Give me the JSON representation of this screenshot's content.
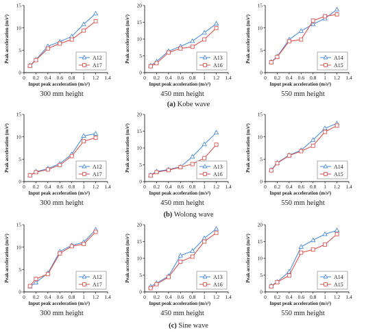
{
  "colors": {
    "blue": "#4F8ED9",
    "red": "#D9534F"
  },
  "groups": [
    {
      "caption_tag": "(a)",
      "caption_text": "Kobe wave"
    },
    {
      "caption_tag": "(b)",
      "caption_text": "Wolong wave"
    },
    {
      "caption_tag": "(c)",
      "caption_text": "Sine wave"
    }
  ],
  "chart_data": [
    {
      "type": "line",
      "group": 0,
      "height_label": "300 mm height",
      "xlabel": "Input peak acceleration  (m/s²)",
      "ylabel": "Peak acceleration  (m/s²)",
      "xlim": [
        0,
        1.4
      ],
      "ylim": [
        0,
        15
      ],
      "xticks": [
        "0",
        "0.2",
        "0.4",
        "0.6",
        "0.8",
        "1",
        "1.2",
        "1.4"
      ],
      "yticks": [
        "0",
        "5",
        "10",
        "15"
      ],
      "legend_position": "bottom-right",
      "x": [
        0.1,
        0.2,
        0.4,
        0.6,
        0.8,
        1.0,
        1.2
      ],
      "series": [
        {
          "name": "A12",
          "marker": "triangle",
          "color": "#4F8ED9",
          "values": [
            1.6,
            2.9,
            5.9,
            6.9,
            8.1,
            10.8,
            13.2
          ]
        },
        {
          "name": "A17",
          "marker": "square",
          "color": "#D9534F",
          "values": [
            1.5,
            2.8,
            5.4,
            6.5,
            7.4,
            9.4,
            11.5
          ]
        }
      ]
    },
    {
      "type": "line",
      "group": 0,
      "height_label": "450 mm height",
      "xlabel": "Input peak acceleration  (m/s²)",
      "ylabel": "Peak acceleration  (m/s²)",
      "xlim": [
        0,
        1.4
      ],
      "ylim": [
        0,
        20
      ],
      "xticks": [
        "0",
        "0.2",
        "0.4",
        "0.6",
        "0.8",
        "1",
        "1.2",
        "1.4"
      ],
      "yticks": [
        "0",
        "5",
        "10",
        "15",
        "20"
      ],
      "legend_position": "bottom-right",
      "x": [
        0.1,
        0.2,
        0.4,
        0.6,
        0.8,
        1.0,
        1.2
      ],
      "series": [
        {
          "name": "A13",
          "marker": "triangle",
          "color": "#4F8ED9",
          "values": [
            2.1,
            3.3,
            6.4,
            7.8,
            9.4,
            11.9,
            14.6
          ]
        },
        {
          "name": "A16",
          "marker": "square",
          "color": "#D9534F",
          "values": [
            1.9,
            2.8,
            6.0,
            7.2,
            7.7,
            9.9,
            13.3
          ]
        }
      ]
    },
    {
      "type": "line",
      "group": 0,
      "height_label": "550 mm height",
      "xlabel": "Input peak acceleration  (m/s²)",
      "ylabel": "Peak acceleration  (m/s²)",
      "xlim": [
        0,
        1.4
      ],
      "ylim": [
        0,
        15
      ],
      "xticks": [
        "0",
        "0.2",
        "0.4",
        "0.6",
        "0.8",
        "1",
        "1.2",
        "1.4"
      ],
      "yticks": [
        "0",
        "5",
        "10",
        "15"
      ],
      "legend_position": "bottom-right",
      "x": [
        0.1,
        0.2,
        0.4,
        0.6,
        0.8,
        1.0,
        1.2
      ],
      "series": [
        {
          "name": "A14",
          "marker": "triangle",
          "color": "#4F8ED9",
          "values": [
            2.4,
            3.6,
            7.4,
            9.3,
            10.8,
            12.1,
            14.1
          ]
        },
        {
          "name": "A15",
          "marker": "square",
          "color": "#D9534F",
          "values": [
            2.3,
            3.5,
            7.0,
            7.4,
            11.6,
            12.6,
            13.0
          ]
        }
      ]
    },
    {
      "type": "line",
      "group": 1,
      "height_label": "300 mm height",
      "xlabel": "Input peak acceleration  (m/s²)",
      "ylabel": "Peak acceleration  (m/s²)",
      "xlim": [
        0,
        1.4
      ],
      "ylim": [
        0,
        15
      ],
      "xticks": [
        "0",
        "0.2",
        "0.4",
        "0.6",
        "0.8",
        "1",
        "1.2",
        "1.4"
      ],
      "yticks": [
        "0",
        "5",
        "10",
        "15"
      ],
      "legend_position": "bottom-right",
      "x": [
        0.1,
        0.2,
        0.4,
        0.6,
        0.8,
        1.0,
        1.2
      ],
      "series": [
        {
          "name": "A12",
          "marker": "triangle",
          "color": "#4F8ED9",
          "values": [
            1.4,
            2.2,
            2.9,
            4.0,
            6.1,
            10.2,
            10.7
          ]
        },
        {
          "name": "A17",
          "marker": "square",
          "color": "#D9534F",
          "values": [
            1.4,
            2.1,
            2.7,
            3.7,
            5.7,
            9.0,
            9.8
          ]
        }
      ]
    },
    {
      "type": "line",
      "group": 1,
      "height_label": "450 mm height",
      "xlabel": "Input peak acceleration  (m/s²)",
      "ylabel": "Peak acceleration  (m/s²)",
      "xlim": [
        0,
        1.4
      ],
      "ylim": [
        0,
        20
      ],
      "xticks": [
        "0",
        "0.2",
        "0.4",
        "0.6",
        "0.8",
        "1",
        "1.2",
        "1.4"
      ],
      "yticks": [
        "0",
        "5",
        "10",
        "15",
        "20"
      ],
      "legend_position": "bottom-right",
      "x": [
        0.1,
        0.2,
        0.4,
        0.6,
        0.8,
        1.0,
        1.2
      ],
      "series": [
        {
          "name": "A13",
          "marker": "triangle",
          "color": "#4F8ED9",
          "values": [
            1.9,
            3.0,
            3.6,
            4.4,
            7.4,
            11.1,
            14.6
          ]
        },
        {
          "name": "A16",
          "marker": "square",
          "color": "#D9534F",
          "values": [
            1.8,
            2.8,
            3.4,
            4.3,
            5.2,
            7.0,
            11.0
          ]
        }
      ]
    },
    {
      "type": "line",
      "group": 1,
      "height_label": "550 mm height",
      "xlabel": "Input peak acceleration  (m/s²)",
      "ylabel": "Peak acceleration  (m/s²)",
      "xlim": [
        0,
        1.4
      ],
      "ylim": [
        0,
        15
      ],
      "xticks": [
        "0",
        "0.2",
        "0.4",
        "0.6",
        "0.8",
        "1",
        "1.2",
        "1.4"
      ],
      "yticks": [
        "0",
        "5",
        "10",
        "15"
      ],
      "legend_position": "bottom-right",
      "x": [
        0.1,
        0.2,
        0.4,
        0.6,
        0.8,
        1.0,
        1.2
      ],
      "series": [
        {
          "name": "A14",
          "marker": "triangle",
          "color": "#4F8ED9",
          "values": [
            2.6,
            4.2,
            5.9,
            7.0,
            9.3,
            11.9,
            13.0
          ]
        },
        {
          "name": "A15",
          "marker": "square",
          "color": "#D9534F",
          "values": [
            2.5,
            4.1,
            5.8,
            6.8,
            8.0,
            11.1,
            12.5
          ]
        }
      ]
    },
    {
      "type": "line",
      "group": 2,
      "height_label": "300 mm height",
      "xlabel": "Input peak acceleration  (m/s²)",
      "ylabel": "Peak acceleration  (m/s²)",
      "xlim": [
        0,
        1.4
      ],
      "ylim": [
        0,
        15
      ],
      "xticks": [
        "0",
        "0.2",
        "0.4",
        "0.6",
        "0.8",
        "1",
        "1.2",
        "1.4"
      ],
      "yticks": [
        "0",
        "5",
        "10",
        "15"
      ],
      "legend_position": "bottom-right",
      "x": [
        0.1,
        0.2,
        0.4,
        0.6,
        0.8,
        1.0,
        1.2
      ],
      "series": [
        {
          "name": "A12",
          "marker": "triangle",
          "color": "#4F8ED9",
          "values": [
            1.2,
            2.1,
            4.2,
            9.0,
            10.4,
            11.1,
            13.9
          ]
        },
        {
          "name": "A17",
          "marker": "square",
          "color": "#D9534F",
          "values": [
            1.3,
            2.9,
            4.0,
            8.6,
            10.2,
            10.7,
            13.4
          ]
        }
      ]
    },
    {
      "type": "line",
      "group": 2,
      "height_label": "450 mm height",
      "xlabel": "Input peak acceleration  (m/s²)",
      "ylabel": "Peak acceleration  (m/s²)",
      "xlim": [
        0,
        1.4
      ],
      "ylim": [
        0,
        20
      ],
      "xticks": [
        "0",
        "0.2",
        "0.4",
        "0.6",
        "0.8",
        "1",
        "1.2",
        "1.4"
      ],
      "yticks": [
        "0",
        "5",
        "10",
        "15",
        "20"
      ],
      "legend_position": "bottom-right",
      "x": [
        0.1,
        0.2,
        0.4,
        0.6,
        0.8,
        1.0,
        1.2
      ],
      "series": [
        {
          "name": "A13",
          "marker": "triangle",
          "color": "#4F8ED9",
          "values": [
            1.6,
            2.6,
            4.7,
            10.8,
            12.2,
            16.0,
            18.8
          ]
        },
        {
          "name": "A16",
          "marker": "square",
          "color": "#D9534F",
          "values": [
            1.1,
            2.3,
            4.4,
            9.0,
            10.5,
            15.0,
            17.6
          ]
        }
      ]
    },
    {
      "type": "line",
      "group": 2,
      "height_label": "550 mm height",
      "xlabel": "Input peak acceleration  (m/s²)",
      "ylabel": "Peak acceleration  (m/s²)",
      "xlim": [
        0,
        1.4
      ],
      "ylim": [
        0,
        20
      ],
      "xticks": [
        "0",
        "0.2",
        "0.4",
        "0.6",
        "0.8",
        "1",
        "1.2",
        "1.4"
      ],
      "yticks": [
        "0",
        "5",
        "10",
        "15",
        "20"
      ],
      "legend_position": "bottom-right",
      "x": [
        0.1,
        0.2,
        0.4,
        0.6,
        0.8,
        1.0,
        1.2
      ],
      "series": [
        {
          "name": "A14",
          "marker": "triangle",
          "color": "#4F8ED9",
          "values": [
            1.8,
            3.0,
            6.0,
            13.4,
            15.4,
            17.2,
            18.3
          ]
        },
        {
          "name": "A15",
          "marker": "square",
          "color": "#D9534F",
          "values": [
            1.6,
            2.9,
            4.9,
            11.7,
            12.6,
            14.1,
            17.2
          ]
        }
      ]
    }
  ]
}
